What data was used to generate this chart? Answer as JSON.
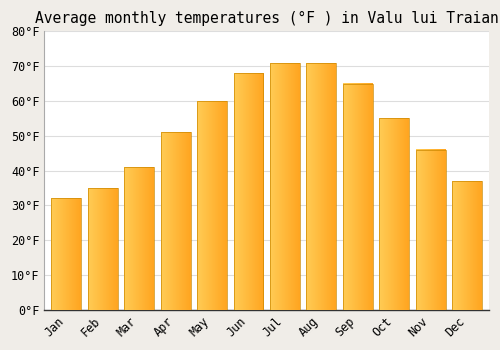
{
  "title": "Average monthly temperatures (°F ) in Valu lui Traian",
  "months": [
    "Jan",
    "Feb",
    "Mar",
    "Apr",
    "May",
    "Jun",
    "Jul",
    "Aug",
    "Sep",
    "Oct",
    "Nov",
    "Dec"
  ],
  "values": [
    32,
    35,
    41,
    51,
    60,
    68,
    71,
    71,
    65,
    55,
    46,
    37
  ],
  "bar_color_main": "#FFA520",
  "bar_color_light": "#FFCC55",
  "background_color": "#FFFFFF",
  "outer_background": "#F0EDE8",
  "grid_color": "#DDDDDD",
  "spine_color": "#AAAAAA",
  "ylim": [
    0,
    80
  ],
  "yticks": [
    0,
    10,
    20,
    30,
    40,
    50,
    60,
    70,
    80
  ],
  "title_fontsize": 10.5,
  "tick_fontsize": 8.5,
  "font_family": "monospace"
}
